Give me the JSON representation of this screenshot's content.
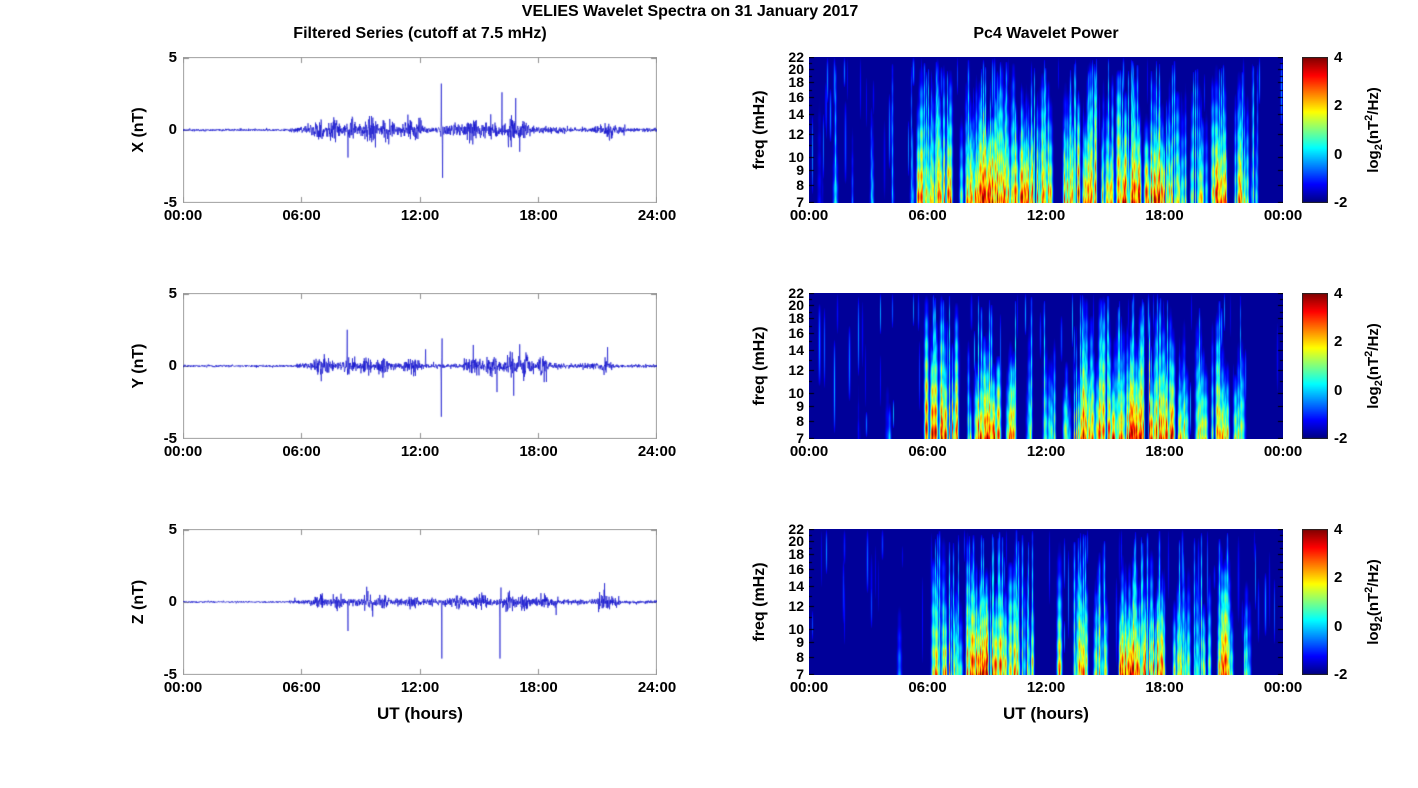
{
  "figure": {
    "title": "VELIES Wavelet Spectra on 31 January 2017",
    "left_title": "Filtered Series (cutoff at 7.5 mHz)",
    "right_title": "Pc4 Wavelet Power",
    "xlabel": "UT (hours)",
    "line_color": "#1212cd",
    "axis_box_color": "#9f9f9f",
    "colormap": "jet",
    "colorbar": {
      "range": [
        -2,
        4
      ],
      "ticks": [
        "4",
        "2",
        "0",
        "-2"
      ],
      "label_parts": {
        "pre": "log",
        "sub": "2",
        "mid": "(nT",
        "sup": "2",
        "post": "/Hz)"
      }
    }
  },
  "chart_data": [
    {
      "id": "ts-x",
      "type": "line",
      "component": "X",
      "ylabel": "X (nT)",
      "ylim": [
        -5,
        5
      ],
      "yticklabels": [
        "5",
        "0",
        "-5"
      ],
      "x_hours": [
        0,
        24
      ],
      "xticklabels": [
        "00:00",
        "06:00",
        "12:00",
        "18:00",
        "24:00"
      ],
      "noise_envelope": [
        [
          0,
          5.4,
          0.05
        ],
        [
          5.4,
          6.1,
          0.12
        ],
        [
          6.1,
          12.1,
          0.26
        ],
        [
          12.1,
          13.0,
          0.15
        ],
        [
          13.0,
          17.6,
          0.27
        ],
        [
          17.6,
          19.5,
          0.16
        ],
        [
          19.5,
          20.8,
          0.11
        ],
        [
          20.8,
          22.4,
          0.22
        ],
        [
          22.4,
          24,
          0.09
        ]
      ],
      "bumps": [
        [
          6.9,
          0.35
        ],
        [
          7.6,
          0.3
        ],
        [
          8.5,
          0.35
        ],
        [
          9.5,
          0.4
        ],
        [
          10.3,
          0.3
        ],
        [
          11.4,
          0.25
        ],
        [
          11.9,
          0.3
        ],
        [
          14.6,
          0.35
        ],
        [
          15.4,
          0.3
        ],
        [
          16.6,
          0.4
        ],
        [
          17.2,
          0.3
        ],
        [
          21.5,
          0.25
        ]
      ],
      "spikes": [
        [
          8.35,
          -1.9
        ],
        [
          9.75,
          -1.2
        ],
        [
          13.08,
          3.2
        ],
        [
          13.15,
          -3.3
        ],
        [
          16.15,
          2.6
        ],
        [
          16.85,
          2.2
        ],
        [
          17.05,
          -1.5
        ]
      ]
    },
    {
      "id": "wav-x",
      "type": "heatmap",
      "component": "X",
      "ylabel": "freq (mHz)",
      "freq_range_mhz": [
        7,
        22
      ],
      "freq_scale": "log",
      "freq_ticks": [
        22,
        20,
        18,
        16,
        14,
        12,
        10,
        9,
        8,
        7
      ],
      "x_hours": [
        0,
        24
      ],
      "xticklabels": [
        "00:00",
        "06:00",
        "12:00",
        "18:00",
        "00:00"
      ],
      "value_range": [
        -2,
        4
      ],
      "background_value": -1.85,
      "bursts": [
        [
          0.6,
          0.2,
          0.22,
          0.8
        ],
        [
          1.3,
          0.25,
          0.25,
          0.9
        ],
        [
          2.2,
          0.2,
          0.2,
          0.7
        ],
        [
          3.1,
          0.25,
          0.22,
          0.8
        ],
        [
          4.2,
          0.2,
          0.2,
          0.6
        ],
        [
          5.1,
          0.2,
          0.25,
          0.7
        ],
        [
          6.3,
          1.5,
          0.8,
          1.0
        ],
        [
          8.0,
          0.5,
          0.7,
          1.0
        ],
        [
          8.8,
          1.1,
          0.95,
          0.9
        ],
        [
          9.9,
          0.8,
          0.9,
          1.0
        ],
        [
          10.8,
          0.8,
          0.85,
          0.95
        ],
        [
          11.8,
          0.9,
          0.7,
          0.9
        ],
        [
          13.3,
          0.8,
          0.75,
          0.9
        ],
        [
          14.3,
          1.0,
          0.85,
          0.95
        ],
        [
          15.3,
          0.7,
          0.7,
          0.85
        ],
        [
          16.3,
          1.2,
          0.95,
          0.9
        ],
        [
          17.5,
          1.0,
          0.9,
          0.9
        ],
        [
          18.6,
          0.8,
          0.7,
          0.9
        ],
        [
          19.8,
          0.8,
          0.6,
          0.85
        ],
        [
          20.8,
          0.8,
          0.85,
          1.0
        ],
        [
          21.9,
          0.7,
          0.75,
          0.9
        ],
        [
          22.6,
          0.4,
          0.45,
          0.7
        ]
      ]
    },
    {
      "id": "ts-y",
      "type": "line",
      "component": "Y",
      "ylabel": "Y (nT)",
      "ylim": [
        -5,
        5
      ],
      "yticklabels": [
        "5",
        "0",
        "-5"
      ],
      "x_hours": [
        0,
        24
      ],
      "xticklabels": [
        "00:00",
        "06:00",
        "12:00",
        "18:00",
        "24:00"
      ],
      "noise_envelope": [
        [
          0,
          5.7,
          0.05
        ],
        [
          5.7,
          6.3,
          0.1
        ],
        [
          6.3,
          12.2,
          0.2
        ],
        [
          12.2,
          14.2,
          0.1
        ],
        [
          14.2,
          18.3,
          0.24
        ],
        [
          18.3,
          19.2,
          0.14
        ],
        [
          19.2,
          20.6,
          0.1
        ],
        [
          20.6,
          21.9,
          0.15
        ],
        [
          21.9,
          24,
          0.07
        ]
      ],
      "bumps": [
        [
          6.8,
          0.3
        ],
        [
          7.3,
          0.25
        ],
        [
          8.4,
          0.25
        ],
        [
          9.3,
          0.3
        ],
        [
          10.1,
          0.25
        ],
        [
          11.7,
          0.3
        ],
        [
          14.9,
          0.3
        ],
        [
          15.6,
          0.35
        ],
        [
          16.6,
          0.4
        ],
        [
          17.3,
          0.35
        ],
        [
          18.2,
          0.3
        ],
        [
          21.4,
          0.2
        ]
      ],
      "spikes": [
        [
          7.0,
          -1.05
        ],
        [
          8.32,
          2.5
        ],
        [
          12.28,
          1.15
        ],
        [
          13.08,
          -3.5
        ],
        [
          13.12,
          1.9
        ],
        [
          15.9,
          -1.8
        ],
        [
          16.75,
          -2.05
        ],
        [
          17.05,
          1.5
        ],
        [
          18.4,
          -1.1
        ],
        [
          21.5,
          1.3
        ]
      ]
    },
    {
      "id": "wav-y",
      "type": "heatmap",
      "component": "Y",
      "ylabel": "freq (mHz)",
      "freq_range_mhz": [
        7,
        22
      ],
      "freq_scale": "log",
      "freq_ticks": [
        22,
        20,
        18,
        16,
        14,
        12,
        10,
        9,
        8,
        7
      ],
      "x_hours": [
        0,
        24
      ],
      "xticklabels": [
        "00:00",
        "06:00",
        "12:00",
        "18:00",
        "00:00"
      ],
      "value_range": [
        -2,
        4
      ],
      "background_value": -1.85,
      "bursts": [
        [
          2.5,
          0.2,
          0.2,
          0.5
        ],
        [
          4.0,
          0.15,
          0.18,
          0.5
        ],
        [
          6.5,
          0.9,
          0.9,
          1.0
        ],
        [
          7.3,
          0.4,
          0.75,
          1.0
        ],
        [
          8.3,
          0.4,
          0.5,
          0.7
        ],
        [
          9.0,
          1.0,
          0.9,
          0.8
        ],
        [
          10.3,
          0.5,
          0.7,
          0.7
        ],
        [
          11.2,
          0.3,
          0.45,
          0.8
        ],
        [
          12.2,
          0.4,
          0.5,
          0.9
        ],
        [
          13.0,
          0.3,
          0.5,
          0.7
        ],
        [
          13.9,
          0.8,
          0.8,
          1.0
        ],
        [
          14.9,
          0.9,
          0.85,
          1.0
        ],
        [
          15.8,
          0.6,
          0.7,
          0.9
        ],
        [
          16.7,
          1.1,
          0.95,
          0.95
        ],
        [
          17.9,
          0.9,
          0.95,
          0.9
        ],
        [
          18.9,
          0.5,
          0.6,
          0.85
        ],
        [
          19.9,
          0.6,
          0.55,
          0.9
        ],
        [
          20.9,
          0.7,
          0.7,
          0.95
        ],
        [
          21.8,
          0.5,
          0.5,
          0.8
        ]
      ]
    },
    {
      "id": "ts-z",
      "type": "line",
      "component": "Z",
      "ylabel": "Z (nT)",
      "ylim": [
        -5,
        5
      ],
      "yticklabels": [
        "5",
        "0",
        "-5"
      ],
      "x_hours": [
        0,
        24
      ],
      "xticklabels": [
        "00:00",
        "06:00",
        "12:00",
        "18:00",
        "24:00"
      ],
      "noise_envelope": [
        [
          0,
          5.4,
          0.04
        ],
        [
          5.4,
          6.4,
          0.09
        ],
        [
          6.4,
          12.2,
          0.16
        ],
        [
          12.2,
          19.0,
          0.17
        ],
        [
          19.0,
          20.9,
          0.11
        ],
        [
          20.9,
          22.1,
          0.2
        ],
        [
          22.1,
          24,
          0.07
        ]
      ],
      "bumps": [
        [
          7.0,
          0.25
        ],
        [
          7.9,
          0.2
        ],
        [
          9.3,
          0.3
        ],
        [
          10.2,
          0.25
        ],
        [
          11.6,
          0.25
        ],
        [
          13.9,
          0.2
        ],
        [
          15.1,
          0.25
        ],
        [
          16.5,
          0.3
        ],
        [
          17.3,
          0.25
        ],
        [
          18.3,
          0.25
        ],
        [
          21.3,
          0.35
        ]
      ],
      "spikes": [
        [
          8.35,
          -2.0
        ],
        [
          9.3,
          1.05
        ],
        [
          13.1,
          -3.9
        ],
        [
          16.05,
          -3.9
        ],
        [
          16.1,
          1.0
        ],
        [
          18.9,
          -0.9
        ],
        [
          21.35,
          1.3
        ]
      ]
    },
    {
      "id": "wav-z",
      "type": "heatmap",
      "component": "Z",
      "ylabel": "freq (mHz)",
      "freq_range_mhz": [
        7,
        22
      ],
      "freq_scale": "log",
      "freq_ticks": [
        22,
        20,
        18,
        16,
        14,
        12,
        10,
        9,
        8,
        7
      ],
      "x_hours": [
        0,
        24
      ],
      "xticklabels": [
        "00:00",
        "06:00",
        "12:00",
        "18:00",
        "00:00"
      ],
      "value_range": [
        -2,
        4
      ],
      "background_value": -1.85,
      "bursts": [
        [
          4.5,
          0.15,
          0.2,
          0.6
        ],
        [
          6.6,
          0.8,
          0.7,
          1.0
        ],
        [
          7.4,
          0.4,
          0.6,
          0.9
        ],
        [
          8.1,
          0.3,
          0.9,
          1.0
        ],
        [
          8.8,
          0.9,
          0.95,
          0.8
        ],
        [
          9.6,
          0.6,
          0.85,
          0.75
        ],
        [
          10.4,
          0.6,
          0.7,
          1.0
        ],
        [
          11.2,
          0.5,
          0.6,
          0.85
        ],
        [
          12.7,
          0.15,
          0.95,
          1.0
        ],
        [
          13.8,
          0.7,
          0.7,
          0.9
        ],
        [
          14.7,
          0.6,
          0.6,
          0.85
        ],
        [
          15.9,
          0.2,
          0.95,
          1.0
        ],
        [
          16.6,
          1.0,
          0.95,
          0.85
        ],
        [
          17.7,
          0.7,
          0.8,
          0.9
        ],
        [
          18.8,
          0.6,
          0.6,
          0.9
        ],
        [
          19.9,
          0.6,
          0.5,
          0.8
        ],
        [
          21.1,
          0.8,
          0.8,
          0.95
        ],
        [
          22.2,
          0.4,
          0.4,
          0.7
        ]
      ]
    }
  ]
}
